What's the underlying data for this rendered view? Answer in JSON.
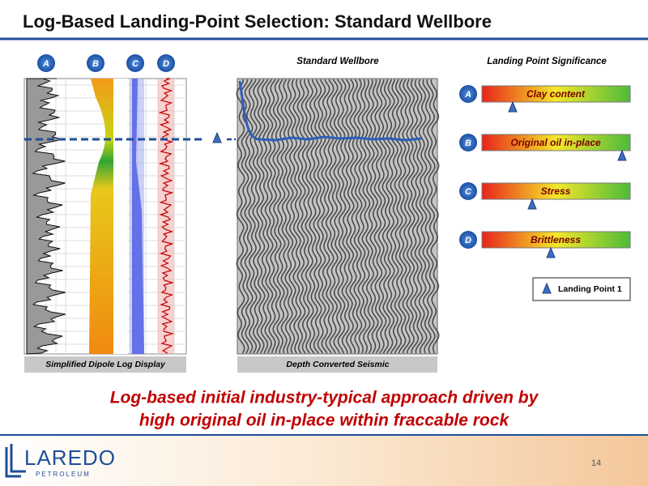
{
  "header": {
    "title": "Log-Based Landing-Point Selection: Standard Wellbore"
  },
  "log_panel": {
    "tracks": [
      "A",
      "B",
      "C",
      "D"
    ],
    "caption": "Simplified Dipole Log Display"
  },
  "seismic_panel": {
    "title": "Standard Wellbore",
    "caption": "Depth Converted Seismic"
  },
  "significance": {
    "title": "Landing Point Significance",
    "rows": [
      {
        "letter": "A",
        "label": "Clay content"
      },
      {
        "letter": "B",
        "label": "Original oil in-place"
      },
      {
        "letter": "C",
        "label": "Stress"
      },
      {
        "letter": "D",
        "label": "Brittleness"
      }
    ],
    "legend": "Landing Point 1"
  },
  "message": [
    "Log-based initial industry-typical approach driven by",
    "high original oil in-place within fraccable rock"
  ],
  "footer": {
    "logo": "LAREDO",
    "logo_sub": "PETROLEUM",
    "page": "14"
  }
}
